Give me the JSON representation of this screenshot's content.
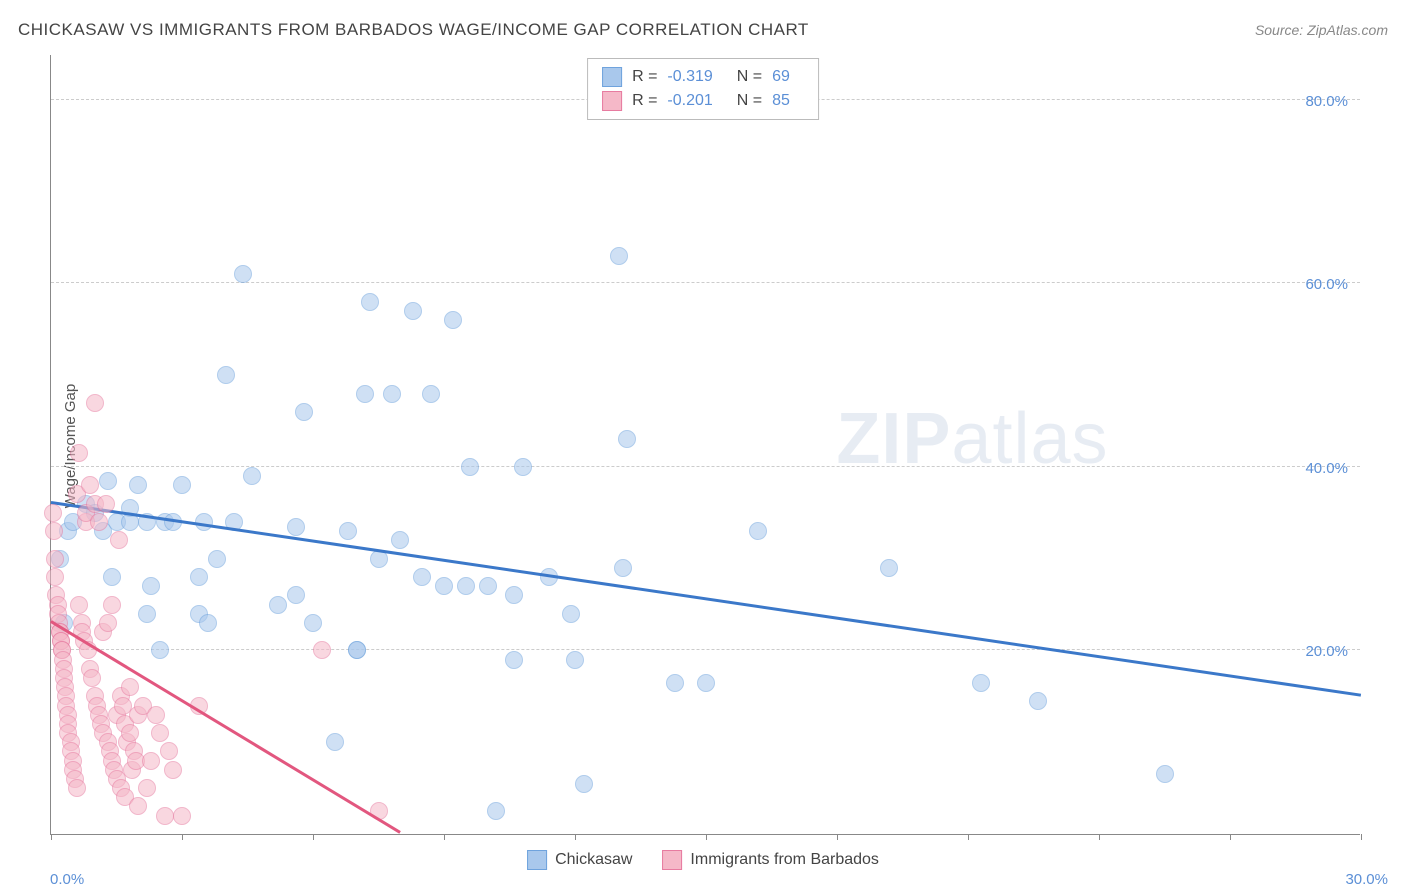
{
  "header": {
    "title": "CHICKASAW VS IMMIGRANTS FROM BARBADOS WAGE/INCOME GAP CORRELATION CHART",
    "source": "Source: ZipAtlas.com"
  },
  "ylabel": "Wage/Income Gap",
  "watermark": {
    "bold": "ZIP",
    "rest": "atlas"
  },
  "chart": {
    "type": "scatter",
    "xlim": [
      0,
      30
    ],
    "ylim": [
      0,
      85
    ],
    "y_ticks": [
      20,
      40,
      60,
      80
    ],
    "y_tick_labels": [
      "20.0%",
      "40.0%",
      "60.0%",
      "80.0%"
    ],
    "x_ticks": [
      0,
      3,
      6,
      9,
      12,
      15,
      18,
      21,
      24,
      27,
      30
    ],
    "x_tick_labels_shown": {
      "first": "0.0%",
      "last": "30.0%"
    },
    "background_color": "#ffffff",
    "grid_color": "#cccccc",
    "axis_color": "#888888",
    "tick_label_color": "#5b8fd6",
    "point_radius": 9,
    "point_opacity": 0.55,
    "series": [
      {
        "id": "chickasaw",
        "label": "Chickasaw",
        "fill_color": "#a9c8ec",
        "stroke_color": "#6fa3dd",
        "trend_color": "#3b78c9",
        "R": "-0.319",
        "N": "69",
        "trend": {
          "x1": 0,
          "y1": 36,
          "x2": 30,
          "y2": 15
        },
        "points": [
          [
            0.2,
            30
          ],
          [
            0.3,
            23
          ],
          [
            0.4,
            33
          ],
          [
            0.5,
            34
          ],
          [
            0.8,
            36
          ],
          [
            1.0,
            35
          ],
          [
            1.2,
            33
          ],
          [
            1.3,
            38.5
          ],
          [
            1.4,
            28
          ],
          [
            1.5,
            34
          ],
          [
            1.8,
            35.5
          ],
          [
            1.8,
            34
          ],
          [
            2.0,
            38
          ],
          [
            2.2,
            34
          ],
          [
            2.2,
            24
          ],
          [
            2.3,
            27
          ],
          [
            2.5,
            20
          ],
          [
            2.6,
            34
          ],
          [
            2.8,
            34
          ],
          [
            3.0,
            38
          ],
          [
            3.4,
            28
          ],
          [
            3.4,
            24
          ],
          [
            3.5,
            34
          ],
          [
            3.6,
            23
          ],
          [
            3.8,
            30
          ],
          [
            4.0,
            50
          ],
          [
            4.2,
            34
          ],
          [
            4.4,
            61
          ],
          [
            4.6,
            39
          ],
          [
            5.2,
            25
          ],
          [
            5.6,
            33.5
          ],
          [
            5.6,
            26
          ],
          [
            5.8,
            46
          ],
          [
            6.0,
            23
          ],
          [
            6.5,
            10
          ],
          [
            6.8,
            33
          ],
          [
            7.0,
            20
          ],
          [
            7.0,
            20
          ],
          [
            7.2,
            48
          ],
          [
            7.3,
            58
          ],
          [
            7.5,
            30
          ],
          [
            7.8,
            48
          ],
          [
            8.0,
            32
          ],
          [
            8.3,
            57
          ],
          [
            8.5,
            28
          ],
          [
            8.7,
            48
          ],
          [
            9.0,
            27
          ],
          [
            9.2,
            56
          ],
          [
            9.5,
            27
          ],
          [
            9.6,
            40
          ],
          [
            10.0,
            27
          ],
          [
            10.2,
            2.5
          ],
          [
            10.6,
            26
          ],
          [
            10.6,
            19
          ],
          [
            10.8,
            40
          ],
          [
            11.4,
            28
          ],
          [
            11.9,
            24
          ],
          [
            12.0,
            19
          ],
          [
            12.2,
            5.5
          ],
          [
            13.0,
            63
          ],
          [
            13.1,
            29
          ],
          [
            13.2,
            43
          ],
          [
            14.3,
            16.5
          ],
          [
            15.0,
            16.5
          ],
          [
            16.2,
            33
          ],
          [
            19.2,
            29
          ],
          [
            21.3,
            16.5
          ],
          [
            22.6,
            14.5
          ],
          [
            25.5,
            6.5
          ]
        ]
      },
      {
        "id": "barbados",
        "label": "Immigrants from Barbados",
        "fill_color": "#f5b8c8",
        "stroke_color": "#e77ba0",
        "trend_color": "#e2577f",
        "R": "-0.201",
        "N": "85",
        "trend": {
          "x1": 0,
          "y1": 23,
          "x2": 8,
          "y2": 0
        },
        "points": [
          [
            0.05,
            35
          ],
          [
            0.08,
            33
          ],
          [
            0.1,
            30
          ],
          [
            0.1,
            28
          ],
          [
            0.12,
            26
          ],
          [
            0.15,
            25
          ],
          [
            0.15,
            24
          ],
          [
            0.18,
            23
          ],
          [
            0.2,
            22
          ],
          [
            0.2,
            22
          ],
          [
            0.22,
            21
          ],
          [
            0.22,
            21
          ],
          [
            0.25,
            20
          ],
          [
            0.25,
            20
          ],
          [
            0.28,
            19
          ],
          [
            0.3,
            18
          ],
          [
            0.3,
            17
          ],
          [
            0.32,
            16
          ],
          [
            0.35,
            15
          ],
          [
            0.35,
            14
          ],
          [
            0.38,
            13
          ],
          [
            0.4,
            12
          ],
          [
            0.4,
            11
          ],
          [
            0.45,
            10
          ],
          [
            0.45,
            9
          ],
          [
            0.5,
            8
          ],
          [
            0.5,
            7
          ],
          [
            0.55,
            6
          ],
          [
            0.6,
            5
          ],
          [
            0.6,
            37
          ],
          [
            0.65,
            41.5
          ],
          [
            0.65,
            25
          ],
          [
            0.7,
            23
          ],
          [
            0.7,
            22
          ],
          [
            0.75,
            21
          ],
          [
            0.8,
            34
          ],
          [
            0.8,
            35
          ],
          [
            0.85,
            20
          ],
          [
            0.9,
            18
          ],
          [
            0.9,
            38
          ],
          [
            0.95,
            17
          ],
          [
            1.0,
            36
          ],
          [
            1.0,
            15
          ],
          [
            1.0,
            47
          ],
          [
            1.05,
            14
          ],
          [
            1.1,
            13
          ],
          [
            1.1,
            34
          ],
          [
            1.15,
            12
          ],
          [
            1.2,
            11
          ],
          [
            1.2,
            22
          ],
          [
            1.25,
            36
          ],
          [
            1.3,
            10
          ],
          [
            1.3,
            23
          ],
          [
            1.35,
            9
          ],
          [
            1.4,
            8
          ],
          [
            1.4,
            25
          ],
          [
            1.45,
            7
          ],
          [
            1.5,
            6
          ],
          [
            1.5,
            13
          ],
          [
            1.55,
            32
          ],
          [
            1.6,
            5
          ],
          [
            1.6,
            15
          ],
          [
            1.65,
            14
          ],
          [
            1.7,
            4
          ],
          [
            1.7,
            12
          ],
          [
            1.75,
            10
          ],
          [
            1.8,
            11
          ],
          [
            1.8,
            16
          ],
          [
            1.85,
            7
          ],
          [
            1.9,
            9
          ],
          [
            1.95,
            8
          ],
          [
            2.0,
            13
          ],
          [
            2.0,
            3
          ],
          [
            2.1,
            14
          ],
          [
            2.2,
            5
          ],
          [
            2.3,
            8
          ],
          [
            2.4,
            13
          ],
          [
            2.5,
            11
          ],
          [
            2.6,
            2
          ],
          [
            2.7,
            9
          ],
          [
            2.8,
            7
          ],
          [
            3.0,
            2
          ],
          [
            3.4,
            14
          ],
          [
            6.2,
            20
          ],
          [
            7.5,
            2.5
          ]
        ]
      }
    ]
  },
  "legend_top": {
    "r_label": "R =",
    "n_label": "N ="
  }
}
